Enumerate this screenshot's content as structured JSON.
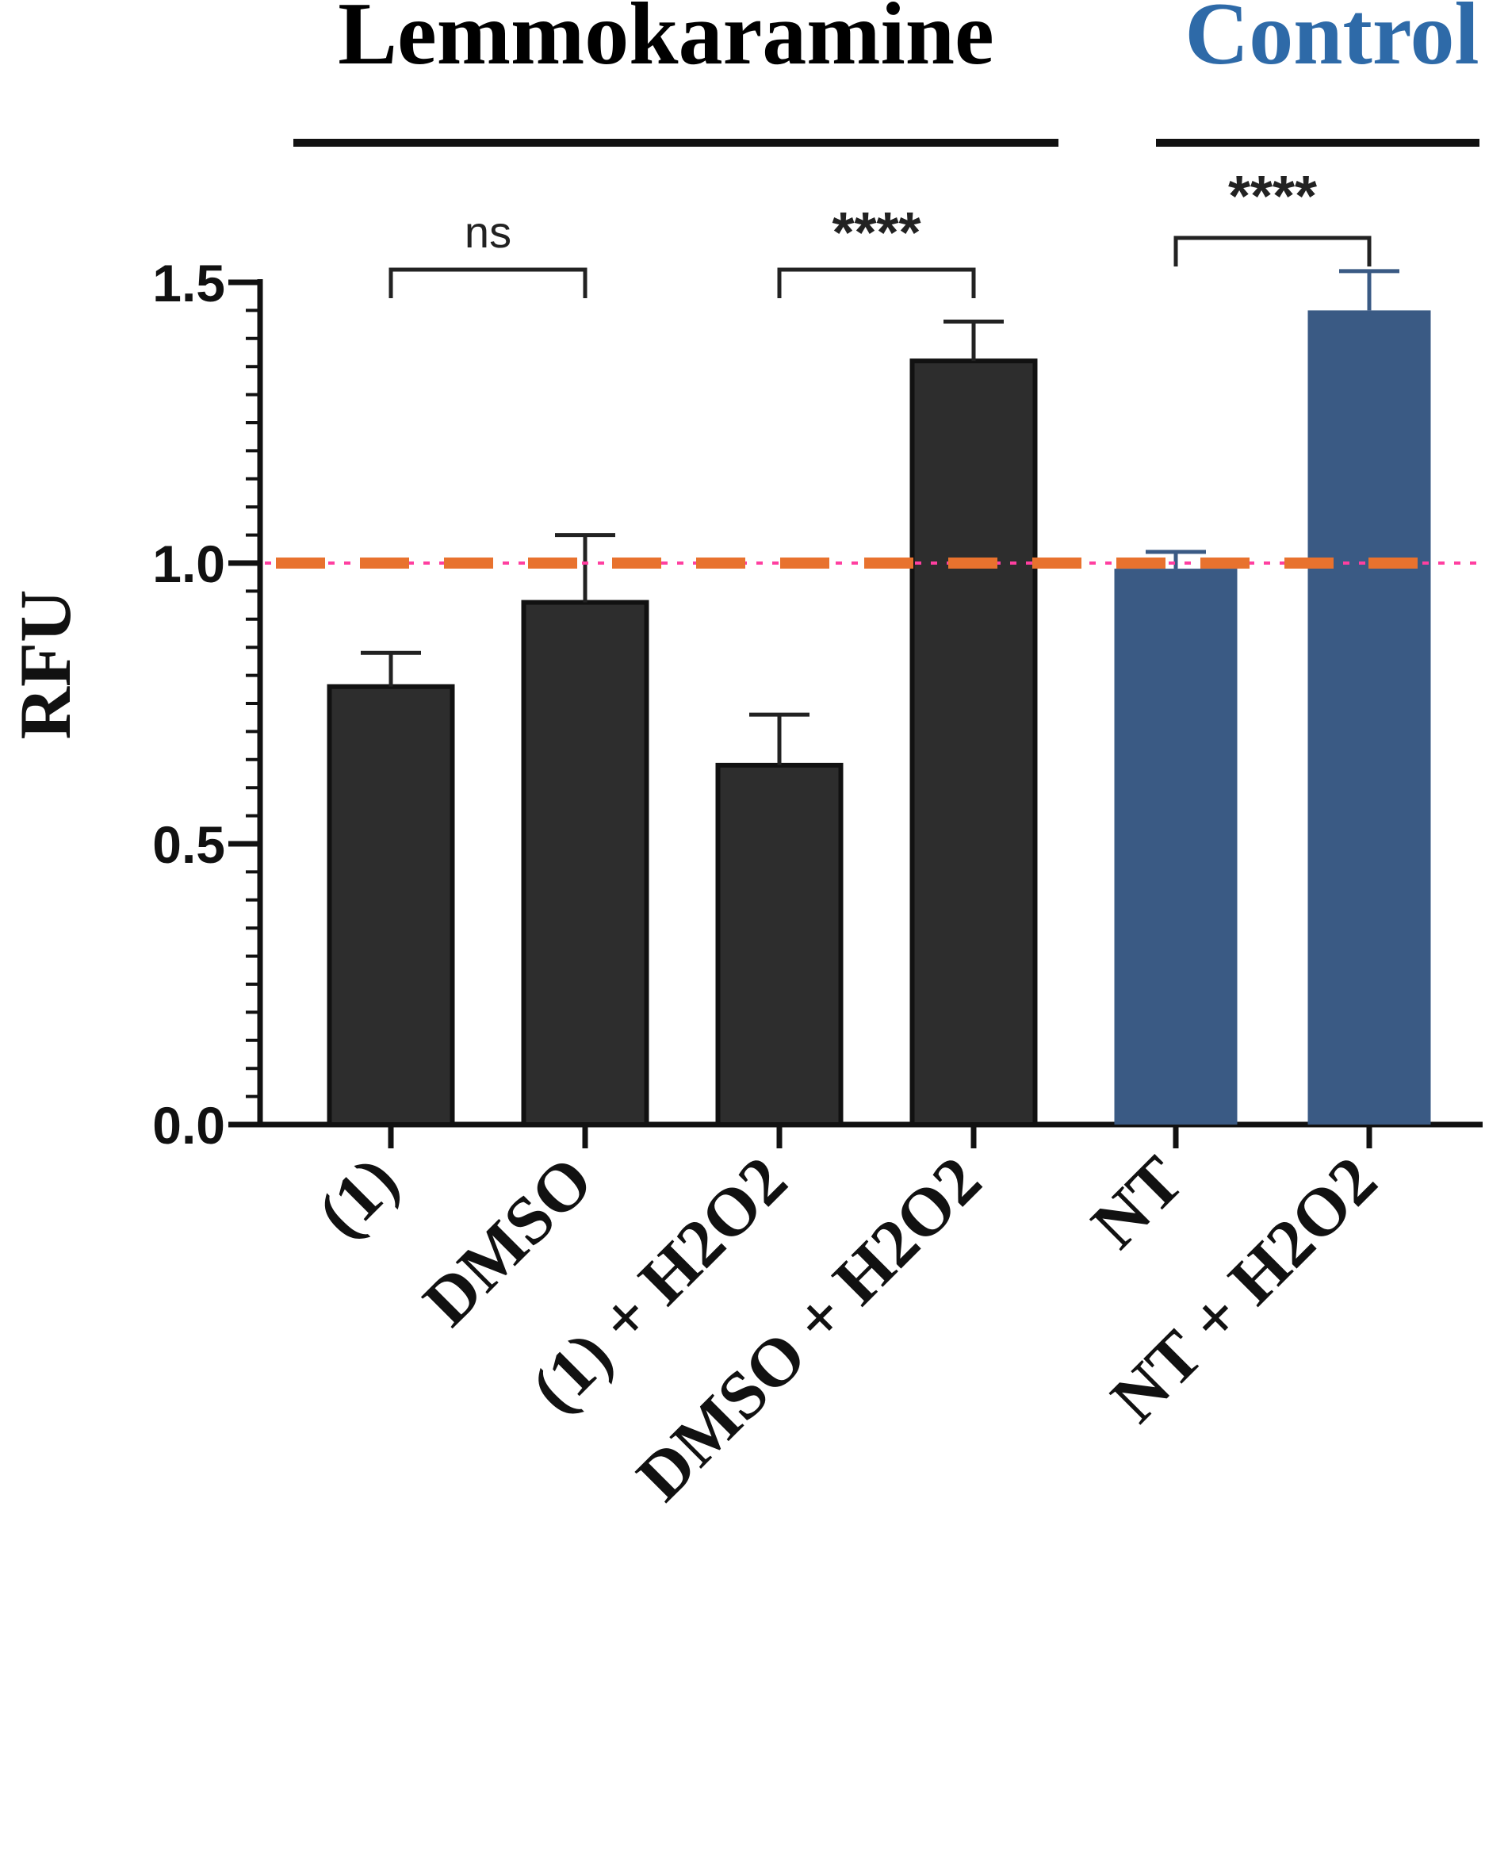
{
  "chart_data": {
    "type": "bar",
    "ylabel": "RFU",
    "ylim": [
      0,
      1.5
    ],
    "yticks": [
      "0.0",
      "0.5",
      "1.0",
      "1.5"
    ],
    "groups": [
      {
        "label": "Lemmokaramine",
        "color": "#000000",
        "categories": [
          "(1)",
          "DMSO",
          "(1) + H2O2",
          "DMSO + H2O2"
        ]
      },
      {
        "label": "Control",
        "color": "#2e6aa8",
        "categories": [
          "NT",
          "NT + H2O2"
        ]
      }
    ],
    "categories": [
      "(1)",
      "DMSO",
      "(1) + H2O2",
      "DMSO + H2O2",
      "NT",
      "NT + H2O2"
    ],
    "values": [
      0.78,
      0.93,
      0.64,
      1.36,
      0.99,
      1.45
    ],
    "errors": [
      0.06,
      0.12,
      0.09,
      0.07,
      0.03,
      0.07
    ],
    "bar_colors": [
      "#2d2d2d",
      "#2d2d2d",
      "#2d2d2d",
      "#2d2d2d",
      "#3a5a84",
      "#3a5a84"
    ],
    "reference_line": {
      "value": 1.0,
      "color": "#e8722e",
      "accent_color": "#ff3fa0"
    },
    "significance": [
      {
        "from": "(1)",
        "to": "DMSO",
        "label": "ns"
      },
      {
        "from": "(1) + H2O2",
        "to": "DMSO + H2O2",
        "label": "****"
      },
      {
        "from": "NT",
        "to": "NT + H2O2",
        "label": "****"
      }
    ],
    "grid": false,
    "legend": "none"
  }
}
